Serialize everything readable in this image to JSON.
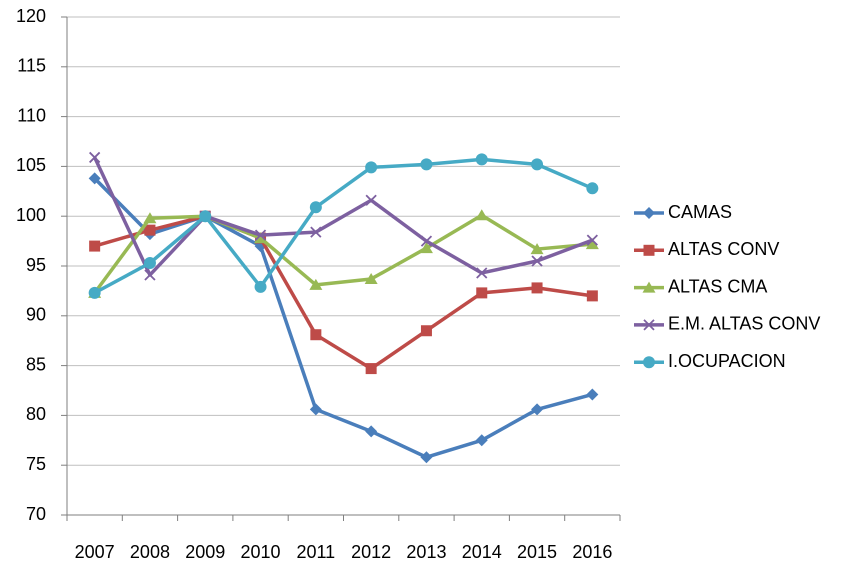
{
  "chart_data": {
    "type": "line",
    "categories": [
      "2007",
      "2008",
      "2009",
      "2010",
      "2011",
      "2012",
      "2013",
      "2014",
      "2015",
      "2016"
    ],
    "series": [
      {
        "name": "CAMAS",
        "color": "#4a7ebb",
        "marker": "diamond",
        "values": [
          103.8,
          98.2,
          100,
          97,
          80.6,
          78.4,
          75.8,
          77.5,
          80.6,
          82.1
        ]
      },
      {
        "name": "ALTAS CONV",
        "color": "#be4b48",
        "marker": "square",
        "values": [
          97,
          98.6,
          100,
          97.8,
          88.1,
          84.7,
          88.5,
          92.3,
          92.8,
          92
        ]
      },
      {
        "name": "ALTAS CMA",
        "color": "#98b954",
        "marker": "triangle",
        "values": [
          92.3,
          99.8,
          100,
          97.8,
          93.1,
          93.7,
          96.8,
          100.1,
          96.7,
          97.2
        ]
      },
      {
        "name": "E.M. ALTAS CONV",
        "color": "#7d60a0",
        "marker": "x",
        "values": [
          105.9,
          94.1,
          100,
          98.1,
          98.4,
          101.6,
          97.5,
          94.3,
          95.5,
          97.6
        ]
      },
      {
        "name": "I.OCUPACION",
        "color": "#46aac5",
        "marker": "circle",
        "values": [
          92.3,
          95.3,
          100,
          92.9,
          100.9,
          104.9,
          105.2,
          105.7,
          105.2,
          102.8
        ]
      }
    ],
    "ylim": [
      70,
      120
    ],
    "yticks": [
      70,
      75,
      80,
      85,
      90,
      95,
      100,
      105,
      110,
      115,
      120
    ],
    "grid": true,
    "legend": "right"
  }
}
